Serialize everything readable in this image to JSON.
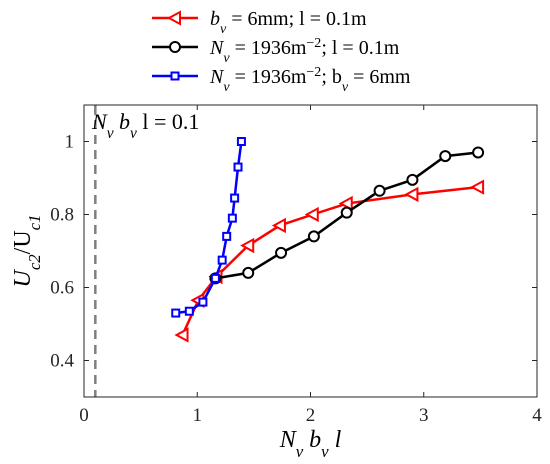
{
  "chart_data": {
    "type": "line",
    "xlabel": "N_v b_v l",
    "ylabel": "U_c2/U_c1",
    "xlim": [
      0,
      4
    ],
    "ylim": [
      0.3,
      1.1
    ],
    "x_ticks": [
      0,
      1,
      2,
      3,
      4
    ],
    "y_ticks": [
      0.4,
      0.6,
      0.8,
      1
    ],
    "x_tick_labels": [
      "0",
      "1",
      "2",
      "3",
      "4"
    ],
    "y_tick_labels": [
      "0.4",
      "0.6",
      "0.8",
      "1"
    ],
    "grid": false,
    "legend_position": "top",
    "reference_line": {
      "x": 0.1,
      "style": "dashed",
      "label": "N_v b_v l = 0.1"
    },
    "series": [
      {
        "name": "b_v = 6mm; l = 0.1m",
        "color": "#ff0000",
        "marker": "triangle-left",
        "x": [
          0.87,
          1.01,
          1.17,
          1.45,
          1.73,
          2.02,
          2.32,
          2.9,
          3.48
        ],
        "y": [
          0.47,
          0.565,
          0.63,
          0.715,
          0.77,
          0.8,
          0.83,
          0.855,
          0.875
        ]
      },
      {
        "name": "N_v = 1936m^-2; l = 0.1m",
        "color": "#000000",
        "marker": "circle",
        "x": [
          1.16,
          1.45,
          1.74,
          2.03,
          2.32,
          2.61,
          2.9,
          3.19,
          3.48
        ],
        "y": [
          0.625,
          0.64,
          0.695,
          0.74,
          0.805,
          0.865,
          0.895,
          0.96,
          0.97
        ]
      },
      {
        "name": "N_v = 1936m^-2; b_v = 6mm",
        "color": "#0000ff",
        "marker": "square",
        "x": [
          0.81,
          0.93,
          1.05,
          1.16,
          1.22,
          1.26,
          1.31,
          1.33,
          1.36,
          1.39
        ],
        "y": [
          0.53,
          0.535,
          0.56,
          0.625,
          0.675,
          0.74,
          0.79,
          0.845,
          0.93,
          1.0
        ]
      }
    ]
  }
}
